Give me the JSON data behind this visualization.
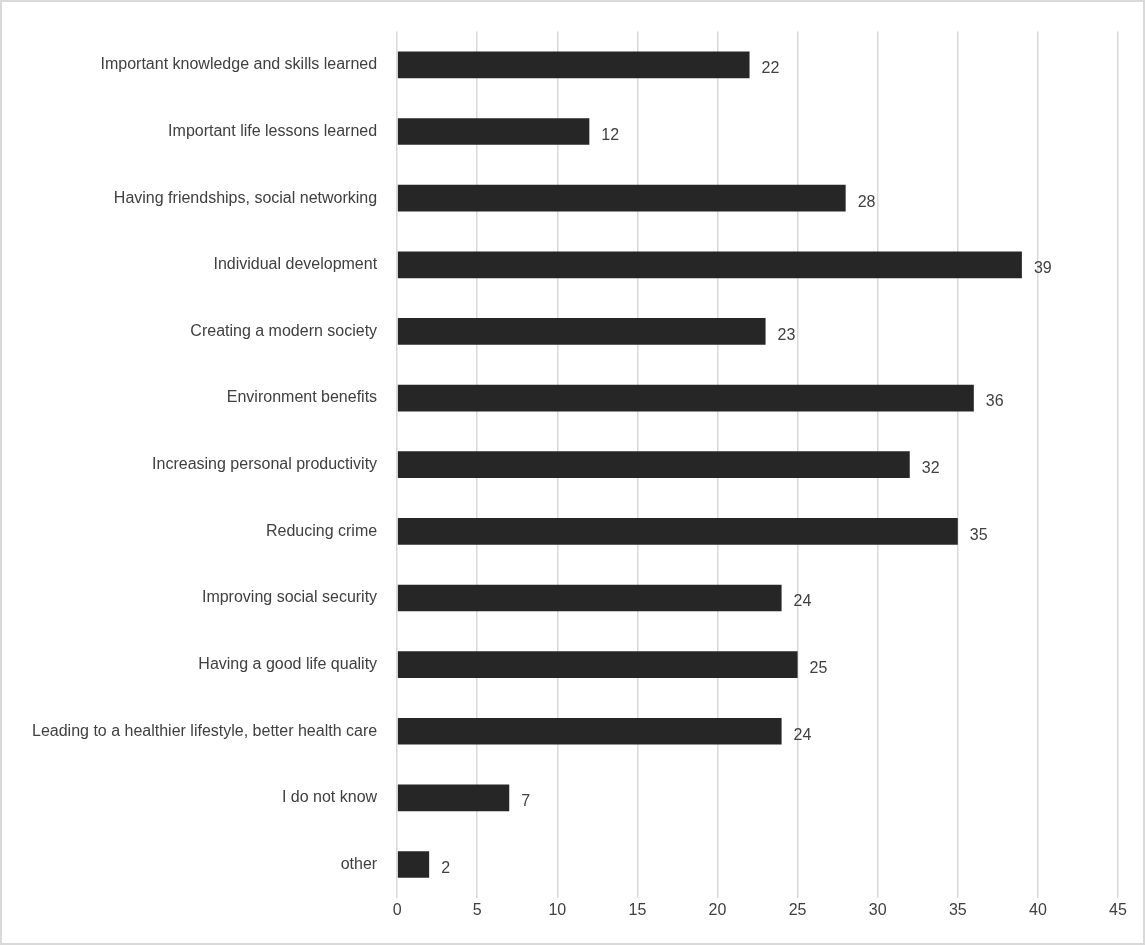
{
  "chart_data": {
    "type": "bar",
    "orientation": "horizontal",
    "categories": [
      "Important knowledge and skills learned",
      "Important life lessons learned",
      "Having friendships, social networking",
      "Individual development",
      "Creating a modern society",
      "Environment benefits",
      "Increasing personal productivity",
      "Reducing crime",
      "Improving social security",
      "Having a good life quality",
      "Leading to a healthier lifestyle, better health care",
      "I do not know",
      "other"
    ],
    "values": [
      22,
      12,
      28,
      39,
      23,
      36,
      32,
      35,
      24,
      25,
      24,
      7,
      2
    ],
    "color": "#262626",
    "xlim": [
      0,
      45
    ],
    "xticks": [
      0,
      5,
      10,
      15,
      20,
      25,
      30,
      35,
      40,
      45
    ],
    "grid": "x",
    "legend": false,
    "data_labels": true
  }
}
